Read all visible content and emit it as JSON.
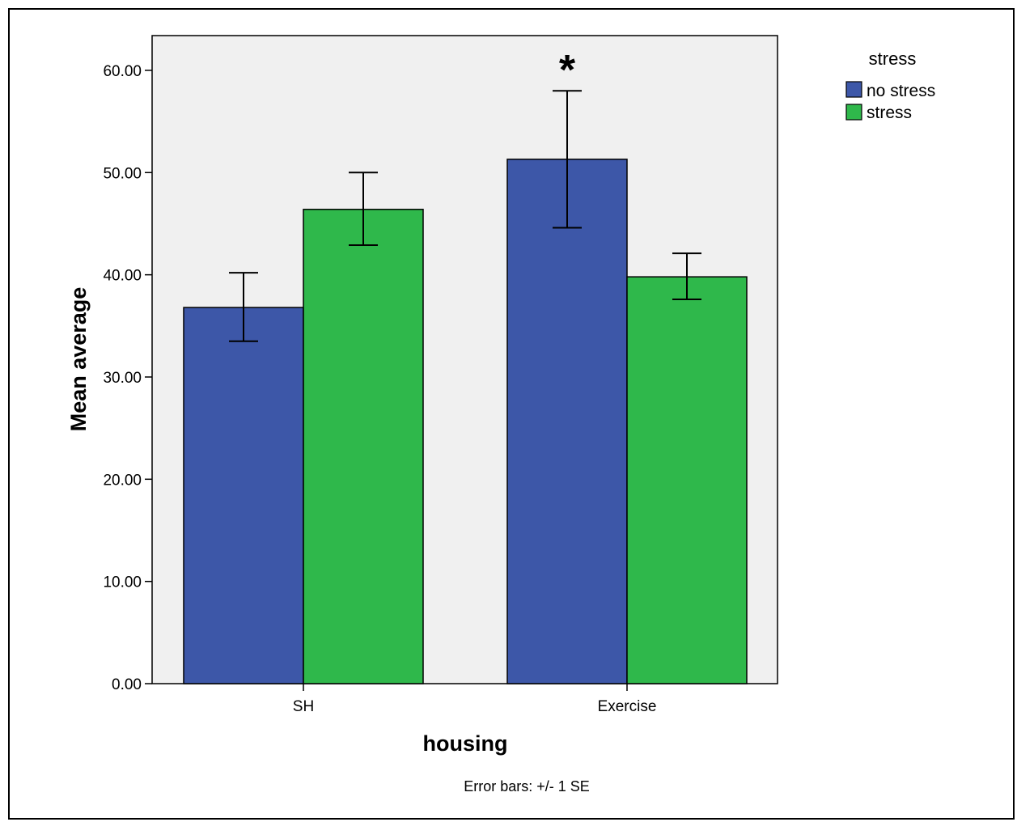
{
  "chart_data": {
    "type": "bar",
    "xlabel": "housing",
    "ylabel": "Mean average",
    "categories": [
      "SH",
      "Exercise"
    ],
    "series": [
      {
        "name": "no stress",
        "color": "#3d57a8",
        "values": [
          36.8,
          51.3
        ],
        "se_low": [
          33.5,
          44.6
        ],
        "se_high": [
          40.2,
          58.0
        ]
      },
      {
        "name": "stress",
        "color": "#2fb84b",
        "values": [
          46.4,
          39.8
        ],
        "se_low": [
          42.9,
          37.6
        ],
        "se_high": [
          50.0,
          42.1
        ]
      }
    ],
    "ylim": [
      0,
      63.4
    ],
    "yticks": [
      "0.00",
      "10.00",
      "20.00",
      "30.00",
      "40.00",
      "50.00",
      "60.00"
    ],
    "legend": {
      "title": "stress",
      "position": "top-right"
    },
    "annotation": "*",
    "footnote": "Error bars: +/- 1 SE",
    "plot_background": "#f0f0f0",
    "grid": false
  }
}
